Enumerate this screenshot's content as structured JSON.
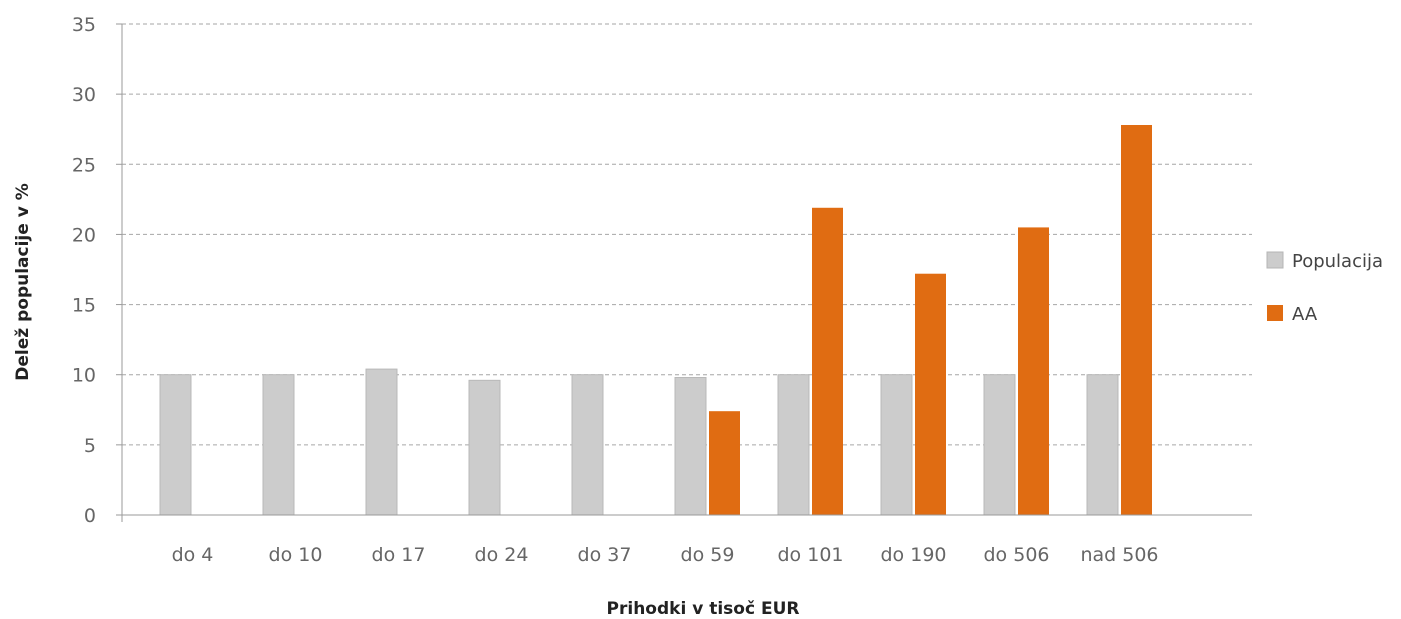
{
  "chart_data": {
    "type": "bar",
    "categories": [
      "do 4",
      "do 10",
      "do 17",
      "do 24",
      "do 37",
      "do 59",
      "do 101",
      "do 190",
      "do 506",
      "nad 506"
    ],
    "series": [
      {
        "name": "Populacija",
        "color": "#cccccc",
        "values": [
          10.0,
          10.0,
          10.4,
          9.6,
          10.0,
          9.8,
          10.0,
          10.0,
          10.0,
          10.0
        ]
      },
      {
        "name": "AA",
        "color": "#e06c12",
        "values": [
          0,
          0,
          0,
          0,
          0,
          7.4,
          21.9,
          17.2,
          20.5,
          27.8
        ]
      }
    ],
    "xlabel": "Prihodki v tisoč EUR",
    "ylabel": "Delež populacije v %",
    "ylim": [
      0,
      35
    ],
    "yticks": [
      "0",
      "5",
      "10",
      "15",
      "20",
      "25",
      "30",
      "35"
    ],
    "grid": true,
    "legend_position": "right"
  }
}
